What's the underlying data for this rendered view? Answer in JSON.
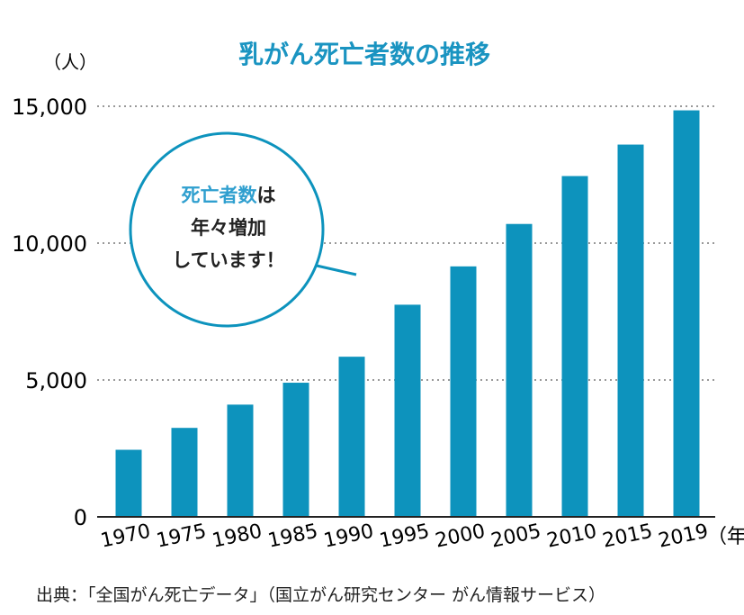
{
  "chart_data": {
    "type": "bar",
    "title": "乳がん死亡者数の推移",
    "y_unit_label": "（人）",
    "x_unit_label": "（年）",
    "categories": [
      "1970",
      "1975",
      "1980",
      "1985",
      "1990",
      "1995",
      "2000",
      "2005",
      "2010",
      "2015",
      "2019"
    ],
    "values": [
      2450,
      3250,
      4100,
      4900,
      5850,
      7750,
      9150,
      10700,
      12450,
      13600,
      14850
    ],
    "y_ticks": [
      "0",
      "5,000",
      "10,000",
      "15,000"
    ],
    "y_tick_values": [
      0,
      5000,
      10000,
      15000
    ],
    "ylim": [
      0,
      15000
    ],
    "grid": "horizontal-dotted",
    "annotation": {
      "highlight": "死亡者数",
      "line1_rest": "は",
      "line2": "年々増加",
      "line3": "しています！"
    },
    "colors": {
      "bar": "#0d93bd",
      "title": "#1a94c1",
      "highlight": "#2f9fcf",
      "grid": "#999999",
      "axis": "#222222"
    }
  },
  "source": "出典：「全国がん死亡データ」（国立がん研究センター がん情報サービス）"
}
